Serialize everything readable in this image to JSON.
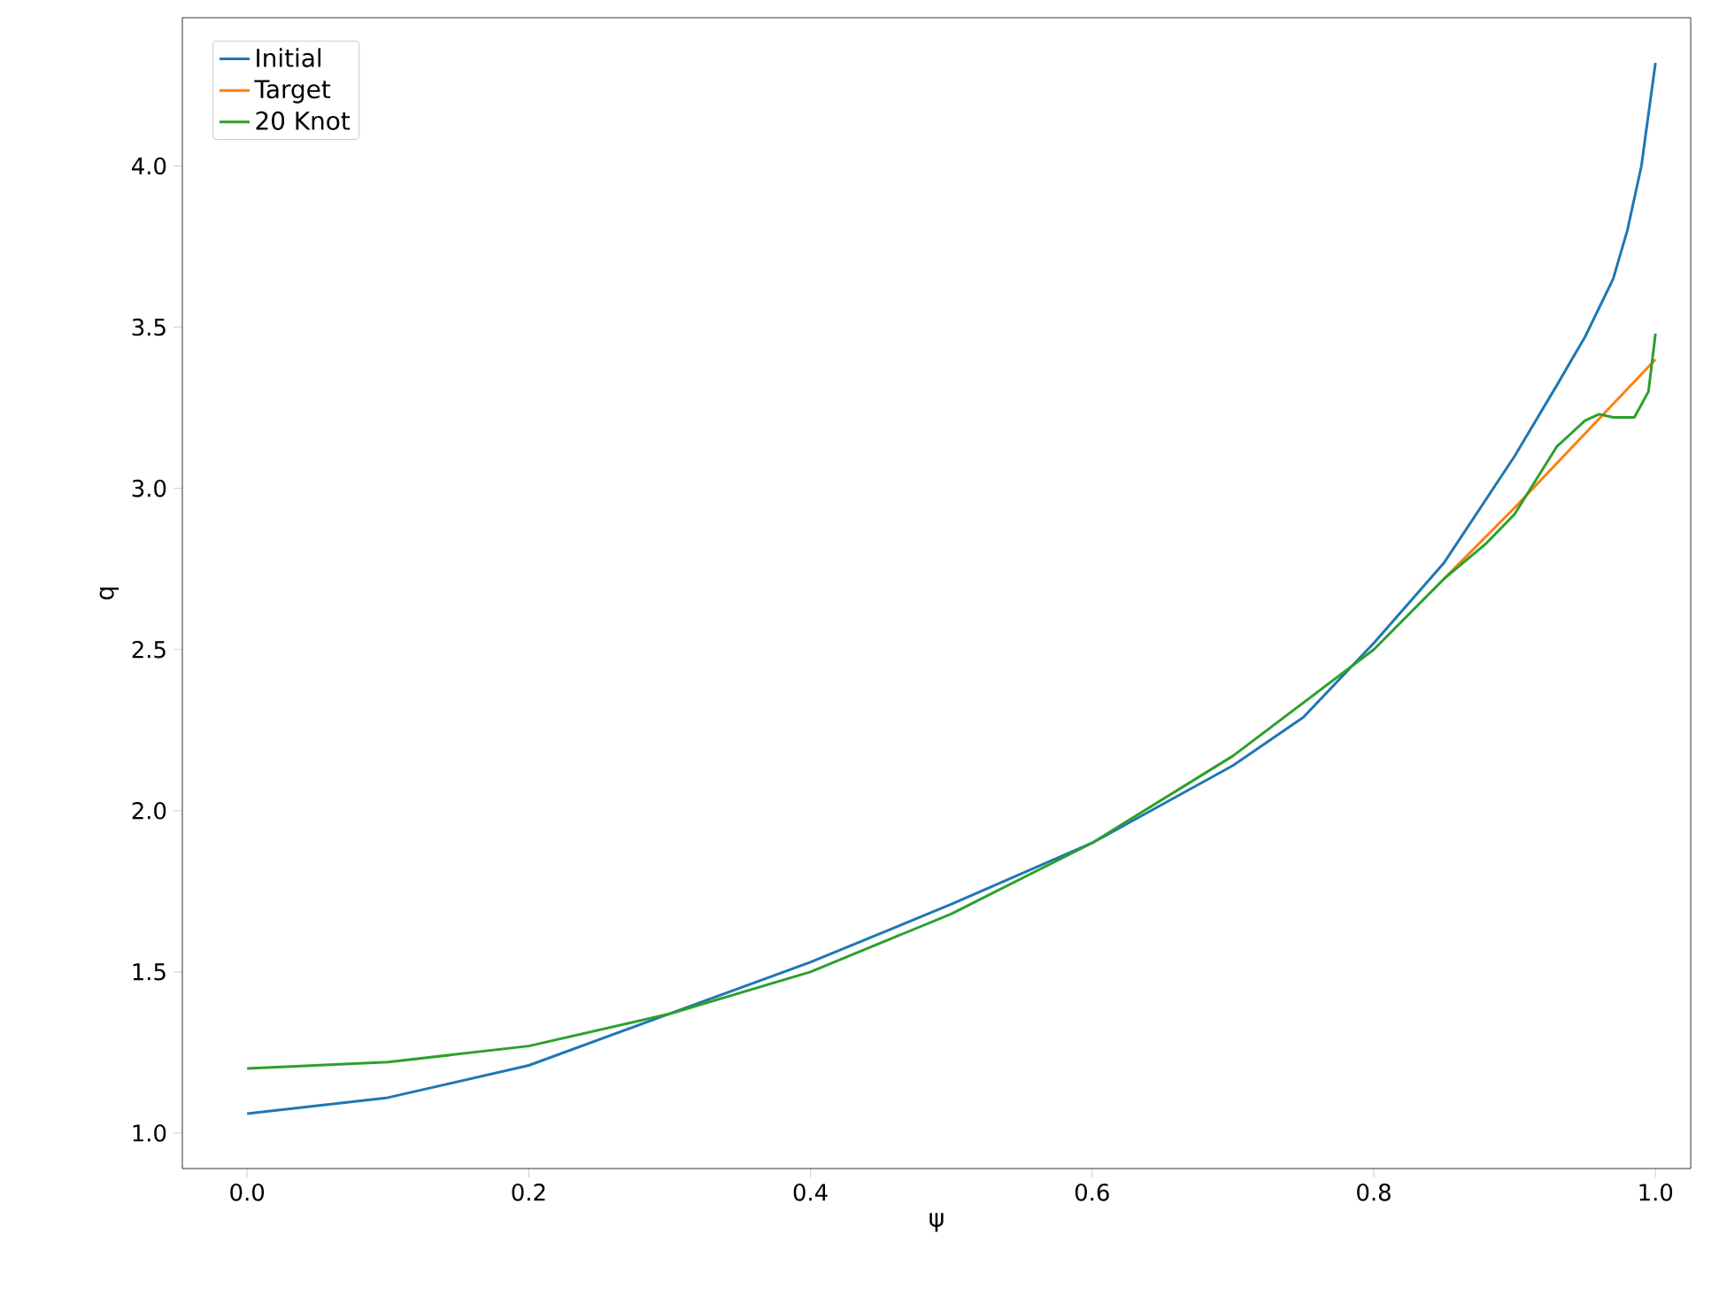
{
  "chart_data": {
    "type": "line",
    "xlabel": "ψ",
    "ylabel": "q",
    "xlim": [
      -0.046,
      1.025
    ],
    "ylim": [
      0.89,
      4.46
    ],
    "xticks": [
      {
        "value": 0,
        "label": "0.0"
      },
      0.2,
      0.4,
      0.6,
      0.8,
      {
        "value": 1,
        "label": "1.0"
      }
    ],
    "yticks": [
      {
        "value": 1,
        "label": "1.0"
      },
      1.5,
      {
        "value": 2,
        "label": "2.0"
      },
      2.5,
      {
        "value": 3,
        "label": "3.0"
      },
      3.5,
      {
        "value": 4,
        "label": "4.0"
      }
    ],
    "legend": "top left",
    "grid": false,
    "series": [
      {
        "name": "Initial",
        "color": "#1f77b4",
        "x": [
          0,
          0.1,
          0.2,
          0.3,
          0.4,
          0.5,
          0.6,
          0.7,
          0.75,
          0.8,
          0.85,
          0.9,
          0.93,
          0.95,
          0.97,
          0.98,
          0.99,
          1.0
        ],
        "values": [
          1.06,
          1.11,
          1.21,
          1.37,
          1.53,
          1.71,
          1.9,
          2.14,
          2.29,
          2.52,
          2.77,
          3.1,
          3.32,
          3.47,
          3.65,
          3.8,
          4.0,
          4.32
        ]
      },
      {
        "name": "Target",
        "color": "#ff7f0e",
        "x": [
          0.85,
          0.9,
          0.95,
          1.0
        ],
        "values": [
          2.72,
          2.94,
          3.17,
          3.4
        ]
      },
      {
        "name": "20 Knot",
        "color": "#2ca02c",
        "x": [
          0,
          0.1,
          0.2,
          0.3,
          0.4,
          0.5,
          0.6,
          0.7,
          0.8,
          0.85,
          0.88,
          0.9,
          0.93,
          0.95,
          0.96,
          0.97,
          0.985,
          0.995,
          1.0
        ],
        "values": [
          1.2,
          1.22,
          1.27,
          1.37,
          1.5,
          1.68,
          1.9,
          2.17,
          2.5,
          2.72,
          2.83,
          2.92,
          3.13,
          3.21,
          3.23,
          3.22,
          3.22,
          3.3,
          3.48
        ]
      }
    ]
  }
}
